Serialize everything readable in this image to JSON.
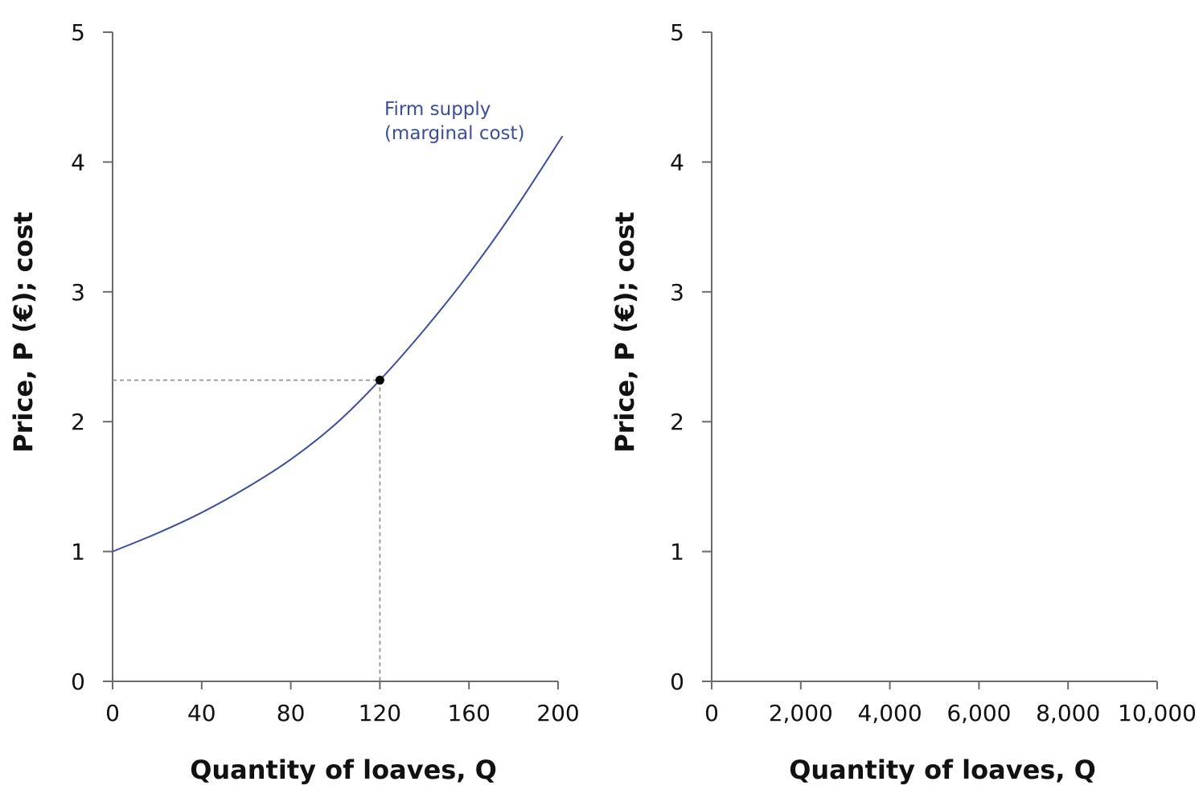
{
  "colors": {
    "curve": "#3a4f9c",
    "axis": "#6b6b6b",
    "guide": "#8a8a8a",
    "point": "#000000",
    "text": "#111111"
  },
  "chart_data": [
    {
      "type": "line",
      "xlabel": "Quantity of loaves, Q",
      "ylabel": "Price, P (€); cost",
      "xlim": [
        0,
        200
      ],
      "ylim": [
        0,
        5
      ],
      "xticks": [
        0,
        40,
        80,
        120,
        160,
        200
      ],
      "xtick_labels": [
        "0",
        "40",
        "80",
        "120",
        "160",
        "200"
      ],
      "yticks": [
        0,
        1,
        2,
        3,
        4,
        5
      ],
      "ytick_labels": [
        "0",
        "1",
        "2",
        "3",
        "4",
        "5"
      ],
      "grid": false,
      "series": [
        {
          "name": "Firm supply\n(marginal cost)",
          "x": [
            0,
            20,
            40,
            60,
            80,
            100,
            120,
            140,
            160,
            180,
            202
          ],
          "y": [
            1.0,
            1.14,
            1.3,
            1.49,
            1.71,
            1.98,
            2.32,
            2.71,
            3.14,
            3.62,
            4.2
          ]
        }
      ],
      "annotations": [
        {
          "label_line1": "Firm supply",
          "label_line2": "(marginal cost)",
          "x": 122,
          "y": 4.2
        }
      ],
      "highlight_point": {
        "x": 120,
        "y": 2.32
      }
    },
    {
      "type": "line",
      "xlabel": "Quantity of loaves, Q",
      "ylabel": "Price, P (€); cost",
      "xlim": [
        0,
        10000
      ],
      "ylim": [
        0,
        5
      ],
      "xticks": [
        0,
        2000,
        4000,
        6000,
        8000,
        10000
      ],
      "xtick_labels": [
        "0",
        "2,000",
        "4,000",
        "6,000",
        "8,000",
        "10,000"
      ],
      "yticks": [
        0,
        1,
        2,
        3,
        4,
        5
      ],
      "ytick_labels": [
        "0",
        "1",
        "2",
        "3",
        "4",
        "5"
      ],
      "grid": false,
      "series": []
    }
  ]
}
